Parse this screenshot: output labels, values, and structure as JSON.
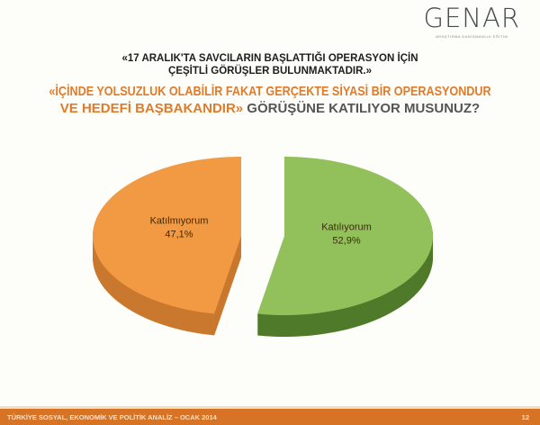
{
  "logo": {
    "name": "GENAR",
    "sub": "ARAŞTIRMA DANIŞMANLIK EĞİTİM"
  },
  "title_line1": "«17 ARALIK'TA SAVCILARIN BAŞLATTIĞI OPERASYON İÇİN",
  "title_line2": "ÇEŞİTLİ GÖRÜŞLER BULUNMAKTADIR.»",
  "question_line1": "«İÇİNDE YOLSUZLUK OLABİLİR FAKAT GERÇEKTE SİYASİ BİR OPERASYONDUR",
  "question_line2a": "VE HEDEFİ BAŞBAKANDIR»",
  "question_line2b": " GÖRÜŞÜNE KATILIYOR MUSUNUZ?",
  "chart_data": {
    "type": "pie",
    "style": "3d-exploded",
    "slices": [
      {
        "label": "Katılıyorum",
        "value": 52.9,
        "value_label": "52,9%",
        "color": "#92c05a",
        "side_color": "#4f7a2a"
      },
      {
        "label": "Katılmıyorum",
        "value": 47.1,
        "value_label": "47,1%",
        "color": "#f29a43",
        "side_color": "#c9782f"
      }
    ],
    "legend": "none"
  },
  "footer": {
    "text": "TÜRKİYE SOSYAL, EKONOMİK VE POLİTİK ANALİZ – OCAK 2014",
    "page": "12"
  }
}
